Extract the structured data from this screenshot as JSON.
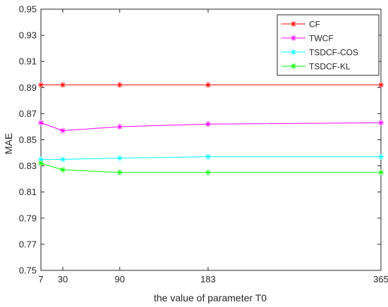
{
  "chart_data": {
    "type": "line",
    "title": "",
    "xlabel": "the value of parameter T0",
    "ylabel": "MAE",
    "x": [
      7,
      30,
      90,
      183,
      365
    ],
    "xlim": [
      7,
      365
    ],
    "ylim": [
      0.75,
      0.95
    ],
    "xticks": [
      "7",
      "30",
      "90",
      "183",
      "365"
    ],
    "yticks": [
      "0.75",
      "0.77",
      "0.79",
      "0.81",
      "0.83",
      "0.85",
      "0.87",
      "0.89",
      "0.91",
      "0.93",
      "0.95"
    ],
    "grid": false,
    "legend_position": "top-right",
    "series": [
      {
        "name": "CF",
        "color": "#ff0000",
        "marker": "asterisk",
        "values": [
          0.892,
          0.892,
          0.892,
          0.892,
          0.892
        ]
      },
      {
        "name": "TWCF",
        "color": "#ff00ff",
        "marker": "asterisk",
        "values": [
          0.863,
          0.857,
          0.86,
          0.862,
          0.863
        ]
      },
      {
        "name": "TSDCF-COS",
        "color": "#00ffff",
        "marker": "asterisk",
        "values": [
          0.835,
          0.835,
          0.836,
          0.837,
          0.837
        ]
      },
      {
        "name": "TSDCF-KL",
        "color": "#00ff00",
        "marker": "asterisk",
        "values": [
          0.832,
          0.827,
          0.825,
          0.825,
          0.825
        ]
      }
    ]
  }
}
